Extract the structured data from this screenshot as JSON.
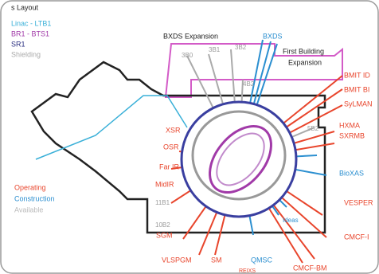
{
  "legend": {
    "title": "s Layout",
    "items": [
      "Linac - LTB1",
      "BR1 - BTS1",
      "SR1",
      "Shielding"
    ]
  },
  "status": [
    "Operating",
    "Construction",
    "Available"
  ],
  "labels": {
    "expansion": [
      "BXDS Expansion",
      "BXDS",
      "First Building",
      "Expansion"
    ],
    "ports": [
      "3B0",
      "3B1",
      "3B2",
      "4B2",
      "5B2",
      "10B2",
      "11B1"
    ],
    "operating": [
      "BMIT ID",
      "BMIT BI",
      "SyLMAN",
      "HXMA",
      "SXRMB",
      "VESPER",
      "CMCF-I",
      "CMCF-BM",
      "SM",
      "VLSPGM",
      "SGM",
      "MidIR",
      "Far IR",
      "OSR",
      "XSR",
      "REIXS"
    ],
    "construction": [
      "BioXAS",
      "QMSC",
      "Ideas"
    ]
  }
}
